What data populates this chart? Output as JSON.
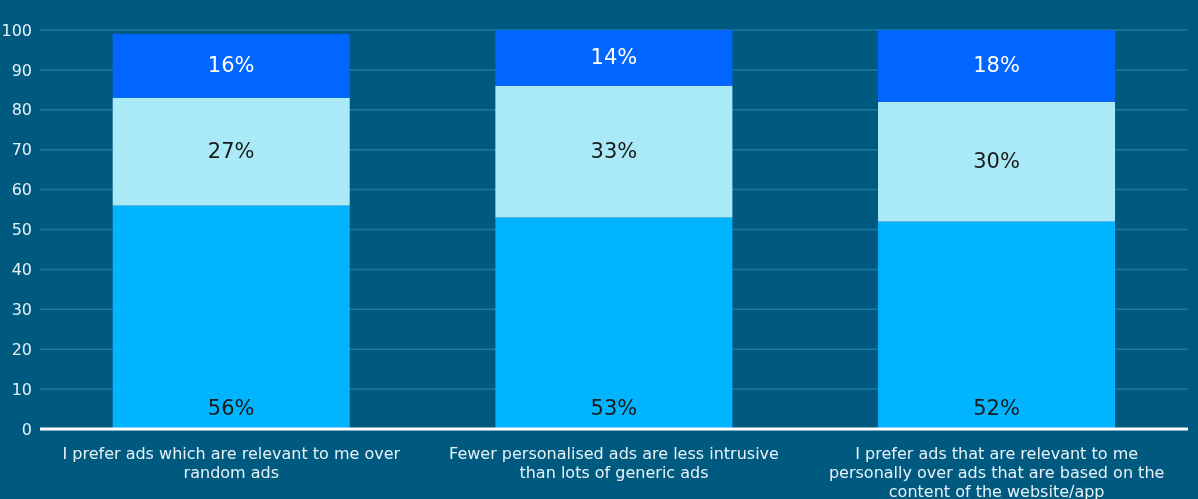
{
  "chart_data": {
    "type": "bar",
    "stacked": true,
    "categories": [
      "I prefer ads which are relevant to me over random ads",
      "Fewer personalised ads are less intrusive than lots of generic ads",
      "I prefer ads that are relevant to me personally over ads that are based on the content of the website/app"
    ],
    "series": [
      {
        "color": "#00b4ff",
        "values": [
          56,
          53,
          52
        ],
        "value_labels": [
          "56%",
          "53%",
          "52%"
        ]
      },
      {
        "color": "#aaeaf8",
        "values": [
          27,
          33,
          30
        ],
        "value_labels": [
          "27%",
          "33%",
          "30%"
        ]
      },
      {
        "color": "#0066ff",
        "values": [
          16,
          14,
          18
        ],
        "value_labels": [
          "16%",
          "14%",
          "18%"
        ]
      }
    ],
    "ylim": [
      0,
      100
    ],
    "yticks": [
      0,
      10,
      20,
      30,
      40,
      50,
      60,
      70,
      80,
      90,
      100
    ],
    "grid": "y",
    "legend": false
  }
}
